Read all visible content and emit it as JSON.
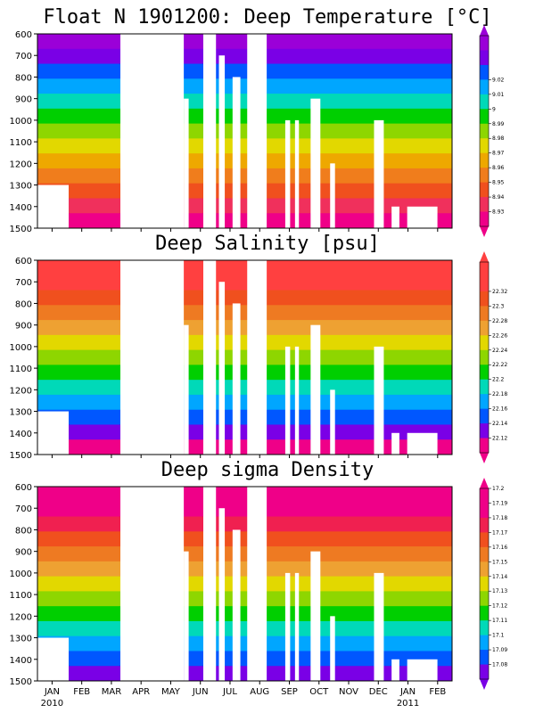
{
  "chart_data": [
    {
      "type": "heatmap",
      "title": "Float N 1901200: Deep Temperature [°C]",
      "y_ticks": [
        "600",
        "700",
        "800",
        "900",
        "1000",
        "1100",
        "1200",
        "1300",
        "1400",
        "1500"
      ],
      "ylim": [
        1500,
        600
      ],
      "colorbar_labels": [
        "8.93",
        "8.94",
        "8.95",
        "8.96",
        "8.97",
        "8.98",
        "8.99",
        "9",
        "9.01",
        "9.02"
      ],
      "palette": [
        "#9b00d8",
        "#7a00e6",
        "#0057ff",
        "#00a6ff",
        "#00d9b8",
        "#00cf00",
        "#8ed600",
        "#e2d800",
        "#eea800",
        "#f07d1c",
        "#f0501e",
        "#f0305c",
        "#ef0088"
      ]
    },
    {
      "type": "heatmap",
      "title": "Deep Salinity [psu]",
      "y_ticks": [
        "600",
        "700",
        "800",
        "900",
        "1000",
        "1100",
        "1200",
        "1300",
        "1400",
        "1500"
      ],
      "ylim": [
        1500,
        600
      ],
      "colorbar_labels": [
        "22.12",
        "22.14",
        "22.16",
        "22.18",
        "22.2",
        "22.22",
        "22.24",
        "22.26",
        "22.28",
        "22.3",
        "22.32"
      ],
      "palette": [
        "#ff4040",
        "#ff4040",
        "#f0501e",
        "#ee7a22",
        "#eea132",
        "#e2d800",
        "#8ed600",
        "#00cf00",
        "#00d9b8",
        "#00a6ff",
        "#0057ff",
        "#7a00e6",
        "#ef0088"
      ]
    },
    {
      "type": "heatmap",
      "title": "Deep sigma Density",
      "y_ticks": [
        "600",
        "700",
        "800",
        "900",
        "1000",
        "1100",
        "1200",
        "1300",
        "1400",
        "1500"
      ],
      "ylim": [
        1500,
        600
      ],
      "colorbar_labels": [
        "17.08",
        "17.09",
        "17.1",
        "17.11",
        "17.12",
        "17.13",
        "17.14",
        "17.15",
        "17.16",
        "17.17",
        "17.18",
        "17.19",
        "17.2"
      ],
      "palette": [
        "#ef0088",
        "#ef0088",
        "#f02050",
        "#f0501e",
        "#ee7a22",
        "#eea132",
        "#e2d800",
        "#8ed600",
        "#00cf00",
        "#00d9b8",
        "#00a6ff",
        "#0057ff",
        "#7a00e6"
      ]
    }
  ],
  "x_axis": {
    "months": [
      "JAN",
      "FEB",
      "MAR",
      "APR",
      "MAY",
      "JUN",
      "JUL",
      "AUG",
      "SEP",
      "OCT",
      "NOV",
      "DEC",
      "JAN",
      "FEB"
    ],
    "years": [
      "2010",
      "2011"
    ]
  },
  "data_gaps_days_since_jan1_2010": [
    [
      60,
      85,
      1500
    ],
    [
      85,
      150,
      600
    ],
    [
      150,
      155,
      900
    ],
    [
      170,
      183,
      600
    ],
    [
      186,
      192,
      700
    ],
    [
      200,
      208,
      800
    ],
    [
      215,
      235,
      600
    ],
    [
      225,
      245,
      1500
    ],
    [
      254,
      259,
      1000
    ],
    [
      264,
      268,
      1000
    ],
    [
      280,
      290,
      900
    ],
    [
      300,
      305,
      1200
    ],
    [
      345,
      355,
      1000
    ],
    [
      363,
      371,
      1400
    ],
    [
      379,
      410,
      1400
    ]
  ]
}
